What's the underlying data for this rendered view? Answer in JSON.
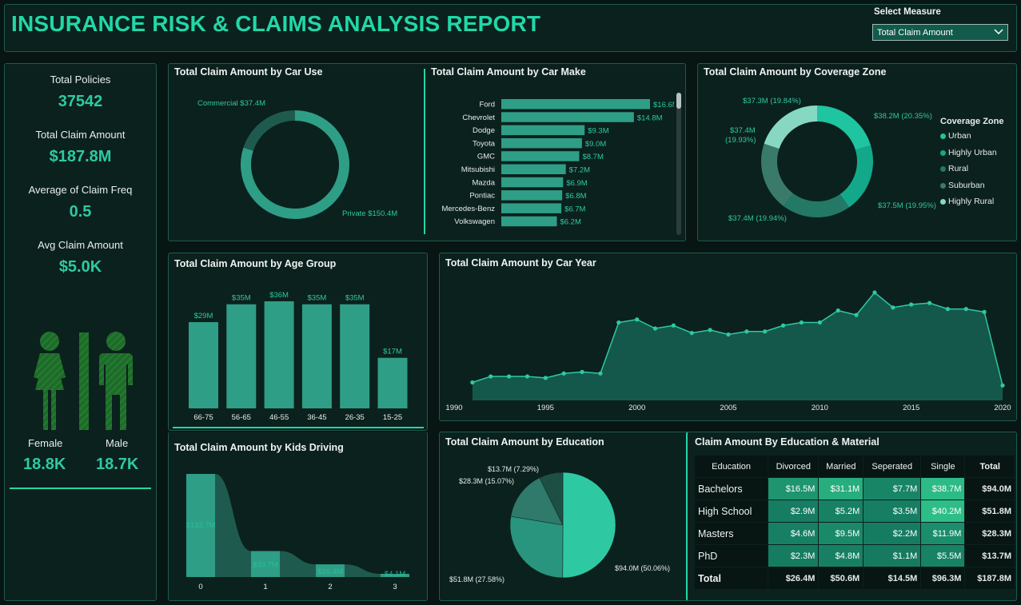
{
  "header": {
    "title": "INSURANCE RISK & CLAIMS ANALYSIS REPORT",
    "select_label": "Select Measure",
    "select_value": "Total Claim Amount"
  },
  "kpis": [
    {
      "label": "Total Policies",
      "value": "37542"
    },
    {
      "label": "Total Claim Amount",
      "value": "$187.8M"
    },
    {
      "label": "Average of Claim Freq",
      "value": "0.5"
    },
    {
      "label": "Avg Claim Amount",
      "value": "$5.0K"
    }
  ],
  "gender": {
    "female_label": "Female",
    "female_value": "18.8K",
    "male_label": "Male",
    "male_value": "18.7K",
    "female_share": 0.501
  },
  "colors": {
    "accent": "#22d7a8",
    "bar": "#2f9e86",
    "panel": "#0b211d",
    "border": "#1e5a4f"
  },
  "car_use": {
    "title": "Total Claim Amount by Car Use",
    "chart_data": {
      "type": "pie",
      "donut": true,
      "slices": [
        {
          "label": "Private $150.4M",
          "value": 150.4
        },
        {
          "label": "Commercial $37.4M",
          "value": 37.4
        }
      ]
    }
  },
  "car_make": {
    "title": "Total Claim Amount by Car Make",
    "chart_data": {
      "type": "bar",
      "orientation": "horizontal",
      "categories": [
        "Ford",
        "Chevrolet",
        "Dodge",
        "Toyota",
        "GMC",
        "Mitsubishi",
        "Mazda",
        "Pontiac",
        "Mercedes-Benz",
        "Volkswagen"
      ],
      "values": [
        16.6,
        14.8,
        9.3,
        9.0,
        8.7,
        7.2,
        6.9,
        6.8,
        6.7,
        6.2
      ],
      "labels": [
        "$16.6M",
        "$14.8M",
        "$9.3M",
        "$9.0M",
        "$8.7M",
        "$7.2M",
        "$6.9M",
        "$6.8M",
        "$6.7M",
        "$6.2M"
      ]
    }
  },
  "coverage": {
    "title": "Total Claim Amount by Coverage Zone",
    "legend_title": "Coverage Zone",
    "chart_data": {
      "type": "pie",
      "donut": true,
      "slices": [
        {
          "name": "Urban",
          "value": 38.2,
          "label": "$38.2M (20.35%)",
          "color": "#1fc4a0"
        },
        {
          "name": "Highly Urban",
          "value": 37.5,
          "label": "$37.5M (19.95%)",
          "color": "#14a88a"
        },
        {
          "name": "Rural",
          "value": 37.4,
          "label": "$37.4M (19.94%)",
          "color": "#237866"
        },
        {
          "name": "Suburban",
          "value": 37.4,
          "label1": "$37.4M",
          "label2": "(19.93%)",
          "color": "#3a7a6b"
        },
        {
          "name": "Highly Rural",
          "value": 37.3,
          "label": "$37.3M (19.84%)",
          "color": "#86d8c2"
        }
      ]
    }
  },
  "age_group": {
    "title": "Total Claim Amount by Age Group",
    "chart_data": {
      "type": "bar",
      "categories": [
        "66-75",
        "56-65",
        "46-55",
        "36-45",
        "26-35",
        "15-25"
      ],
      "values": [
        29,
        35,
        36,
        35,
        35,
        17
      ],
      "labels": [
        "$29M",
        "$35M",
        "$36M",
        "$35M",
        "$35M",
        "$17M"
      ]
    }
  },
  "kids": {
    "title": "Total Claim Amount by Kids Driving",
    "chart_data": {
      "type": "bar",
      "categories": [
        "0",
        "1",
        "2",
        "3"
      ],
      "values": [
        133.7,
        33.7,
        16.4,
        4.1
      ],
      "labels": [
        "$133.7M",
        "$33.7M",
        "$16.4M",
        "$4.1M"
      ]
    }
  },
  "car_year": {
    "title": "Total Claim Amount by Car Year",
    "chart_data": {
      "type": "area",
      "x": [
        1991,
        1992,
        1993,
        1994,
        1995,
        1996,
        1997,
        1998,
        1999,
        2000,
        2001,
        2002,
        2003,
        2004,
        2005,
        2006,
        2007,
        2008,
        2009,
        2010,
        2011,
        2012,
        2013,
        2014,
        2015,
        2016,
        2017,
        2018,
        2019,
        2020
      ],
      "values": [
        1.2,
        1.6,
        1.6,
        1.6,
        1.5,
        1.8,
        1.9,
        1.8,
        5.2,
        5.4,
        4.8,
        5.0,
        4.5,
        4.7,
        4.4,
        4.6,
        4.6,
        5.0,
        5.2,
        5.2,
        6.0,
        5.7,
        7.2,
        6.2,
        6.4,
        6.5,
        6.1,
        6.1,
        5.9,
        1.0
      ],
      "ylim": [
        0,
        8
      ],
      "xticks": [
        "1990",
        "1995",
        "2000",
        "2005",
        "2010",
        "2015",
        "2020"
      ]
    }
  },
  "education": {
    "title": "Total Claim Amount by Education",
    "chart_data": {
      "type": "pie",
      "slices": [
        {
          "label": "$94.0M (50.06%)",
          "value": 94.0,
          "color": "#2ec9a3"
        },
        {
          "label": "$51.8M (27.58%)",
          "value": 51.8,
          "color": "#29957e"
        },
        {
          "label": "$28.3M (15.07%)",
          "value": 28.3,
          "color": "#2f7a6a"
        },
        {
          "label": "$13.7M (7.29%)",
          "value": 13.7,
          "color": "#1d4f45"
        }
      ]
    }
  },
  "matrix": {
    "title": "Claim Amount By Education & Material",
    "columns": [
      "Education",
      "Divorced",
      "Married",
      "Seperated",
      "Single",
      "Total"
    ],
    "rows": [
      {
        "name": "Bachelors",
        "cells": [
          "$16.5M",
          "$31.1M",
          "$7.7M",
          "$38.7M"
        ],
        "raw": [
          16.5,
          31.1,
          7.7,
          38.7
        ],
        "total": "$94.0M"
      },
      {
        "name": "High School",
        "cells": [
          "$2.9M",
          "$5.2M",
          "$3.5M",
          "$40.2M"
        ],
        "raw": [
          2.9,
          5.2,
          3.5,
          40.2
        ],
        "total": "$51.8M"
      },
      {
        "name": "Masters",
        "cells": [
          "$4.6M",
          "$9.5M",
          "$2.2M",
          "$11.9M"
        ],
        "raw": [
          4.6,
          9.5,
          2.2,
          11.9
        ],
        "total": "$28.3M"
      },
      {
        "name": "PhD",
        "cells": [
          "$2.3M",
          "$4.8M",
          "$1.1M",
          "$5.5M"
        ],
        "raw": [
          2.3,
          4.8,
          1.1,
          5.5
        ],
        "total": "$13.7M"
      }
    ],
    "totals": {
      "name": "Total",
      "cells": [
        "$26.4M",
        "$50.6M",
        "$14.5M",
        "$96.3M"
      ],
      "total": "$187.8M"
    }
  }
}
